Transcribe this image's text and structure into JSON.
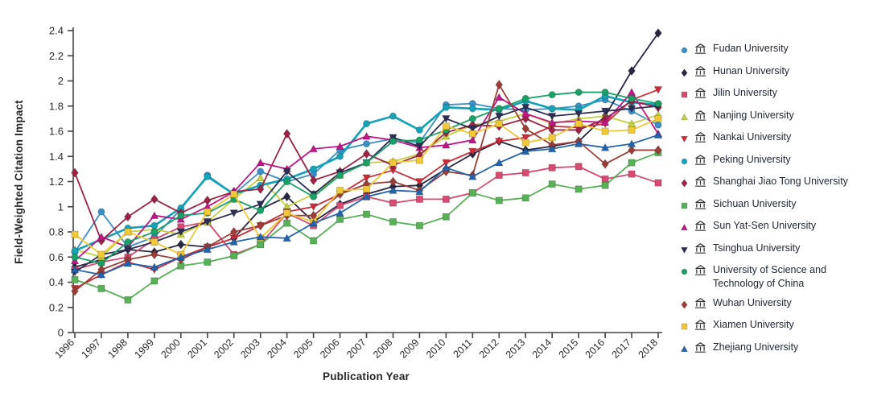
{
  "figure": {
    "y_axis_title": "Field-Weighted Citation Impact",
    "x_axis_title": "Publication Year"
  },
  "axes": {
    "y_tick_labels": [
      "0",
      "0.2",
      "0.4",
      "0.6",
      "0.8",
      "1",
      "1.2",
      "1.4",
      "1.6",
      "1.8",
      "2",
      "2.2",
      "2.4"
    ],
    "y_tick_values": [
      0,
      0.2,
      0.4,
      0.6,
      0.8,
      1.0,
      1.2,
      1.4,
      1.6,
      1.8,
      2.0,
      2.2,
      2.4
    ],
    "x_tick_labels": [
      "1996",
      "1997",
      "1998",
      "1999",
      "2000",
      "2001",
      "2002",
      "2003",
      "2004",
      "2005",
      "2006",
      "2007",
      "2008",
      "2009",
      "2010",
      "2011",
      "2012",
      "2013",
      "2014",
      "2015",
      "2016",
      "2017",
      "2018"
    ],
    "axis_color": "#444444",
    "tick_text_color": "#2b2b2b"
  },
  "legend": {
    "icon": "bank-building-icon",
    "icon_color": "#2e2e2e"
  },
  "chart_data": {
    "type": "line",
    "title": "",
    "xlabel": "Publication Year",
    "ylabel": "Field-Weighted Citation Impact",
    "x": [
      1996,
      1997,
      1998,
      1999,
      2000,
      2001,
      2002,
      2003,
      2004,
      2005,
      2006,
      2007,
      2008,
      2009,
      2010,
      2011,
      2012,
      2013,
      2014,
      2015,
      2016,
      2017,
      2018
    ],
    "ylim": [
      0,
      2.4
    ],
    "grid": false,
    "legend_position": "right",
    "series": [
      {
        "name": "Fudan University",
        "marker": "circle",
        "color": "#3a8fc7",
        "values": [
          0.64,
          0.96,
          0.68,
          0.76,
          0.98,
          1.25,
          1.1,
          1.28,
          1.2,
          1.26,
          1.45,
          1.5,
          1.54,
          1.51,
          1.81,
          1.82,
          1.78,
          1.77,
          1.78,
          1.8,
          1.85,
          1.76,
          1.65
        ]
      },
      {
        "name": "Hunan University",
        "marker": "diamond",
        "color": "#262640",
        "values": [
          0.52,
          0.58,
          0.66,
          0.64,
          0.7,
          0.68,
          0.75,
          0.98,
          1.08,
          0.88,
          1.02,
          1.1,
          1.16,
          1.17,
          1.3,
          1.42,
          1.52,
          1.45,
          1.48,
          1.52,
          1.72,
          2.08,
          2.38
        ]
      },
      {
        "name": "Jilin University",
        "marker": "square",
        "color": "#d84a72",
        "values": [
          0.5,
          0.56,
          0.6,
          0.74,
          0.84,
          0.88,
          0.62,
          0.7,
          0.95,
          0.85,
          1.01,
          1.08,
          1.03,
          1.06,
          1.06,
          1.11,
          1.25,
          1.27,
          1.31,
          1.32,
          1.22,
          1.26,
          1.19
        ]
      },
      {
        "name": "Nanjing University",
        "marker": "triangle",
        "color": "#c3d13e",
        "values": [
          0.66,
          0.6,
          0.8,
          0.82,
          0.78,
          0.88,
          1.06,
          1.23,
          1.0,
          1.1,
          1.25,
          1.35,
          1.36,
          1.42,
          1.56,
          1.65,
          1.68,
          1.74,
          1.66,
          1.7,
          1.72,
          1.66,
          1.73
        ]
      },
      {
        "name": "Nankai University",
        "marker": "triangle-down",
        "color": "#ce2b38",
        "values": [
          0.35,
          0.46,
          0.56,
          0.5,
          0.6,
          0.68,
          0.75,
          0.85,
          0.96,
          1.0,
          1.1,
          1.23,
          1.29,
          1.2,
          1.35,
          1.44,
          1.52,
          1.55,
          1.64,
          1.63,
          1.66,
          1.85,
          1.93
        ]
      },
      {
        "name": "Peking University",
        "marker": "circle",
        "color": "#16a3b8",
        "values": [
          0.65,
          0.74,
          0.83,
          0.85,
          0.99,
          1.24,
          1.1,
          1.17,
          1.22,
          1.3,
          1.4,
          1.66,
          1.72,
          1.61,
          1.79,
          1.78,
          1.77,
          1.84,
          1.78,
          1.77,
          1.88,
          1.83,
          1.81
        ]
      },
      {
        "name": "Shanghai Jiao Tong University",
        "marker": "diamond",
        "color": "#9e2245",
        "values": [
          1.27,
          0.73,
          0.92,
          1.06,
          0.95,
          1.05,
          1.12,
          1.14,
          1.58,
          1.21,
          1.28,
          1.42,
          1.33,
          1.41,
          1.59,
          1.65,
          1.64,
          1.7,
          1.61,
          1.61,
          1.7,
          1.84,
          1.79
        ]
      },
      {
        "name": "Sichuan University",
        "marker": "square",
        "color": "#57b156",
        "values": [
          0.42,
          0.35,
          0.26,
          0.41,
          0.53,
          0.56,
          0.61,
          0.7,
          0.87,
          0.73,
          0.9,
          0.94,
          0.88,
          0.85,
          0.92,
          1.11,
          1.05,
          1.07,
          1.18,
          1.14,
          1.17,
          1.35,
          1.43
        ]
      },
      {
        "name": "Sun Yat-Sen University",
        "marker": "triangle",
        "color": "#c01687",
        "values": [
          0.57,
          0.76,
          0.68,
          0.93,
          0.9,
          1.0,
          1.12,
          1.35,
          1.3,
          1.46,
          1.48,
          1.56,
          1.53,
          1.47,
          1.49,
          1.53,
          1.87,
          1.74,
          1.67,
          1.68,
          1.67,
          1.91,
          1.58
        ]
      },
      {
        "name": "Tsinghua University",
        "marker": "triangle-down",
        "color": "#2c2e55",
        "values": [
          0.48,
          0.62,
          0.66,
          0.72,
          0.8,
          0.88,
          0.95,
          1.02,
          1.28,
          1.1,
          1.27,
          1.35,
          1.55,
          1.48,
          1.7,
          1.62,
          1.72,
          1.79,
          1.72,
          1.74,
          1.76,
          1.78,
          1.8
        ]
      },
      {
        "name": "University of Science and Technology of China",
        "marker": "circle",
        "color": "#17a266",
        "values": [
          0.6,
          0.55,
          0.72,
          0.8,
          0.93,
          0.95,
          1.06,
          0.97,
          1.2,
          1.08,
          1.25,
          1.35,
          1.52,
          1.53,
          1.61,
          1.7,
          1.78,
          1.86,
          1.89,
          1.91,
          1.91,
          1.86,
          1.82
        ]
      },
      {
        "name": "Wuhan University",
        "marker": "diamond",
        "color": "#9d3d38",
        "values": [
          0.33,
          0.5,
          0.58,
          0.62,
          0.58,
          0.68,
          0.8,
          0.85,
          0.93,
          0.93,
          1.1,
          1.18,
          1.2,
          1.13,
          1.28,
          1.25,
          1.97,
          1.62,
          1.49,
          1.52,
          1.34,
          1.45,
          1.45
        ]
      },
      {
        "name": "Xiamen University",
        "marker": "square",
        "color": "#f1c937",
        "values": [
          0.78,
          0.62,
          0.8,
          0.72,
          0.62,
          0.96,
          1.1,
          0.75,
          0.95,
          0.88,
          1.13,
          1.14,
          1.35,
          1.37,
          1.64,
          1.58,
          1.66,
          1.51,
          1.55,
          1.66,
          1.6,
          1.61,
          1.7
        ]
      },
      {
        "name": "Zhejiang University",
        "marker": "triangle",
        "color": "#2264ad",
        "values": [
          0.5,
          0.46,
          0.55,
          0.52,
          0.6,
          0.66,
          0.72,
          0.76,
          0.75,
          0.87,
          0.95,
          1.08,
          1.13,
          1.12,
          1.31,
          1.24,
          1.35,
          1.44,
          1.46,
          1.5,
          1.47,
          1.5,
          1.57
        ]
      }
    ]
  }
}
